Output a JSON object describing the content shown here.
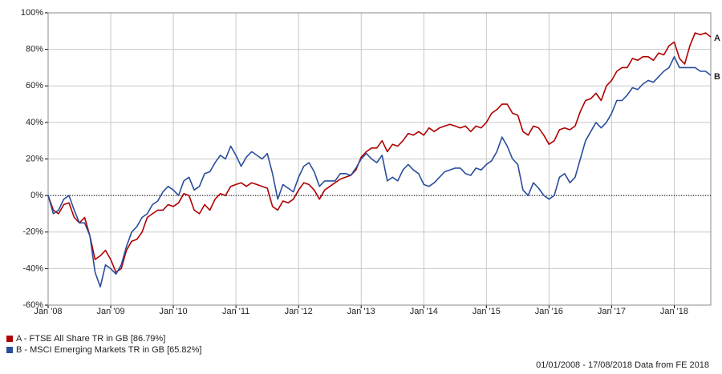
{
  "chart_data": {
    "type": "line",
    "footer": "01/01/2008 - 17/08/2018 Data from FE 2018",
    "xlim": [
      "2008-01",
      "2018-08"
    ],
    "xticks": [
      {
        "value": "2008-01",
        "label": "Jan '08"
      },
      {
        "value": "2009-01",
        "label": "Jan '09"
      },
      {
        "value": "2010-01",
        "label": "Jan '10"
      },
      {
        "value": "2011-01",
        "label": "Jan '11"
      },
      {
        "value": "2012-01",
        "label": "Jan '12"
      },
      {
        "value": "2013-01",
        "label": "Jan '13"
      },
      {
        "value": "2014-01",
        "label": "Jan '14"
      },
      {
        "value": "2015-01",
        "label": "Jan '15"
      },
      {
        "value": "2016-01",
        "label": "Jan '16"
      },
      {
        "value": "2017-01",
        "label": "Jan '17"
      },
      {
        "value": "2018-01",
        "label": "Jan '18"
      }
    ],
    "ylim": [
      -60,
      100
    ],
    "yticks": [
      {
        "value": -60,
        "label": "-60%"
      },
      {
        "value": -40,
        "label": "-40%"
      },
      {
        "value": -20,
        "label": "-20%"
      },
      {
        "value": 0,
        "label": "0%"
      },
      {
        "value": 20,
        "label": "20%"
      },
      {
        "value": 40,
        "label": "40%"
      },
      {
        "value": 60,
        "label": "60%"
      },
      {
        "value": 80,
        "label": "80%"
      },
      {
        "value": 100,
        "label": "100%"
      }
    ],
    "grid": true,
    "zero_line": true,
    "x": [
      "2008-01",
      "2008-02",
      "2008-03",
      "2008-04",
      "2008-05",
      "2008-06",
      "2008-07",
      "2008-08",
      "2008-09",
      "2008-10",
      "2008-11",
      "2008-12",
      "2009-01",
      "2009-02",
      "2009-03",
      "2009-04",
      "2009-05",
      "2009-06",
      "2009-07",
      "2009-08",
      "2009-09",
      "2009-10",
      "2009-11",
      "2009-12",
      "2010-01",
      "2010-02",
      "2010-03",
      "2010-04",
      "2010-05",
      "2010-06",
      "2010-07",
      "2010-08",
      "2010-09",
      "2010-10",
      "2010-11",
      "2010-12",
      "2011-01",
      "2011-02",
      "2011-03",
      "2011-04",
      "2011-05",
      "2011-06",
      "2011-07",
      "2011-08",
      "2011-09",
      "2011-10",
      "2011-11",
      "2011-12",
      "2012-01",
      "2012-02",
      "2012-03",
      "2012-04",
      "2012-05",
      "2012-06",
      "2012-07",
      "2012-08",
      "2012-09",
      "2012-10",
      "2012-11",
      "2012-12",
      "2013-01",
      "2013-02",
      "2013-03",
      "2013-04",
      "2013-05",
      "2013-06",
      "2013-07",
      "2013-08",
      "2013-09",
      "2013-10",
      "2013-11",
      "2013-12",
      "2014-01",
      "2014-02",
      "2014-03",
      "2014-04",
      "2014-05",
      "2014-06",
      "2014-07",
      "2014-08",
      "2014-09",
      "2014-10",
      "2014-11",
      "2014-12",
      "2015-01",
      "2015-02",
      "2015-03",
      "2015-04",
      "2015-05",
      "2015-06",
      "2015-07",
      "2015-08",
      "2015-09",
      "2015-10",
      "2015-11",
      "2015-12",
      "2016-01",
      "2016-02",
      "2016-03",
      "2016-04",
      "2016-05",
      "2016-06",
      "2016-07",
      "2016-08",
      "2016-09",
      "2016-10",
      "2016-11",
      "2016-12",
      "2017-01",
      "2017-02",
      "2017-03",
      "2017-04",
      "2017-05",
      "2017-06",
      "2017-07",
      "2017-08",
      "2017-09",
      "2017-10",
      "2017-11",
      "2017-12",
      "2018-01",
      "2018-02",
      "2018-03",
      "2018-04",
      "2018-05",
      "2018-06",
      "2018-07",
      "2018-08"
    ],
    "series": [
      {
        "name": "A - FTSE All Share TR in GB [86.79%]",
        "label": "A",
        "color": "#b00000",
        "values": [
          0,
          -8,
          -10,
          -5,
          -4,
          -12,
          -15,
          -12,
          -22,
          -35,
          -33,
          -30,
          -35,
          -42,
          -40,
          -30,
          -25,
          -24,
          -20,
          -12,
          -10,
          -8,
          -8,
          -5,
          -6,
          -4,
          1,
          0,
          -8,
          -10,
          -5,
          -8,
          -2,
          1,
          0,
          5,
          6,
          7,
          5,
          7,
          6,
          5,
          4,
          -6,
          -8,
          -3,
          -4,
          -2,
          3,
          7,
          6,
          3,
          -2,
          3,
          5,
          7,
          9,
          10,
          11,
          14,
          21,
          24,
          26,
          26,
          30,
          24,
          28,
          27,
          30,
          34,
          33,
          35,
          33,
          37,
          35,
          37,
          38,
          39,
          38,
          37,
          38,
          35,
          38,
          37,
          40,
          45,
          47,
          50,
          50,
          45,
          44,
          35,
          33,
          38,
          37,
          33,
          28,
          30,
          36,
          37,
          36,
          38,
          46,
          52,
          53,
          56,
          52,
          60,
          63,
          68,
          70,
          70,
          75,
          74,
          76,
          76,
          74,
          78,
          77,
          82,
          84,
          75,
          72,
          82,
          89,
          88,
          89,
          86.79
        ]
      },
      {
        "name": "B - MSCI Emerging Markets TR in GB [65.82%]",
        "label": "B",
        "color": "#2a4d9b",
        "values": [
          0,
          -10,
          -8,
          -2,
          0,
          -8,
          -15,
          -15,
          -22,
          -42,
          -50,
          -38,
          -40,
          -43,
          -38,
          -28,
          -20,
          -17,
          -12,
          -10,
          -5,
          -3,
          2,
          5,
          3,
          0,
          8,
          10,
          3,
          5,
          12,
          13,
          18,
          22,
          20,
          27,
          22,
          16,
          21,
          24,
          22,
          20,
          23,
          12,
          -2,
          6,
          4,
          2,
          10,
          16,
          18,
          13,
          5,
          8,
          8,
          8,
          12,
          12,
          11,
          15,
          20,
          23,
          20,
          18,
          22,
          8,
          10,
          8,
          14,
          17,
          14,
          12,
          6,
          5,
          7,
          10,
          13,
          14,
          15,
          15,
          12,
          11,
          15,
          14,
          17,
          19,
          24,
          32,
          27,
          20,
          17,
          3,
          0,
          7,
          4,
          0,
          -2,
          0,
          10,
          12,
          7,
          10,
          20,
          30,
          35,
          40,
          37,
          40,
          45,
          52,
          52,
          55,
          59,
          58,
          61,
          63,
          62,
          65,
          68,
          70,
          76,
          70,
          70,
          70,
          70,
          68,
          68,
          65.82
        ]
      }
    ]
  }
}
